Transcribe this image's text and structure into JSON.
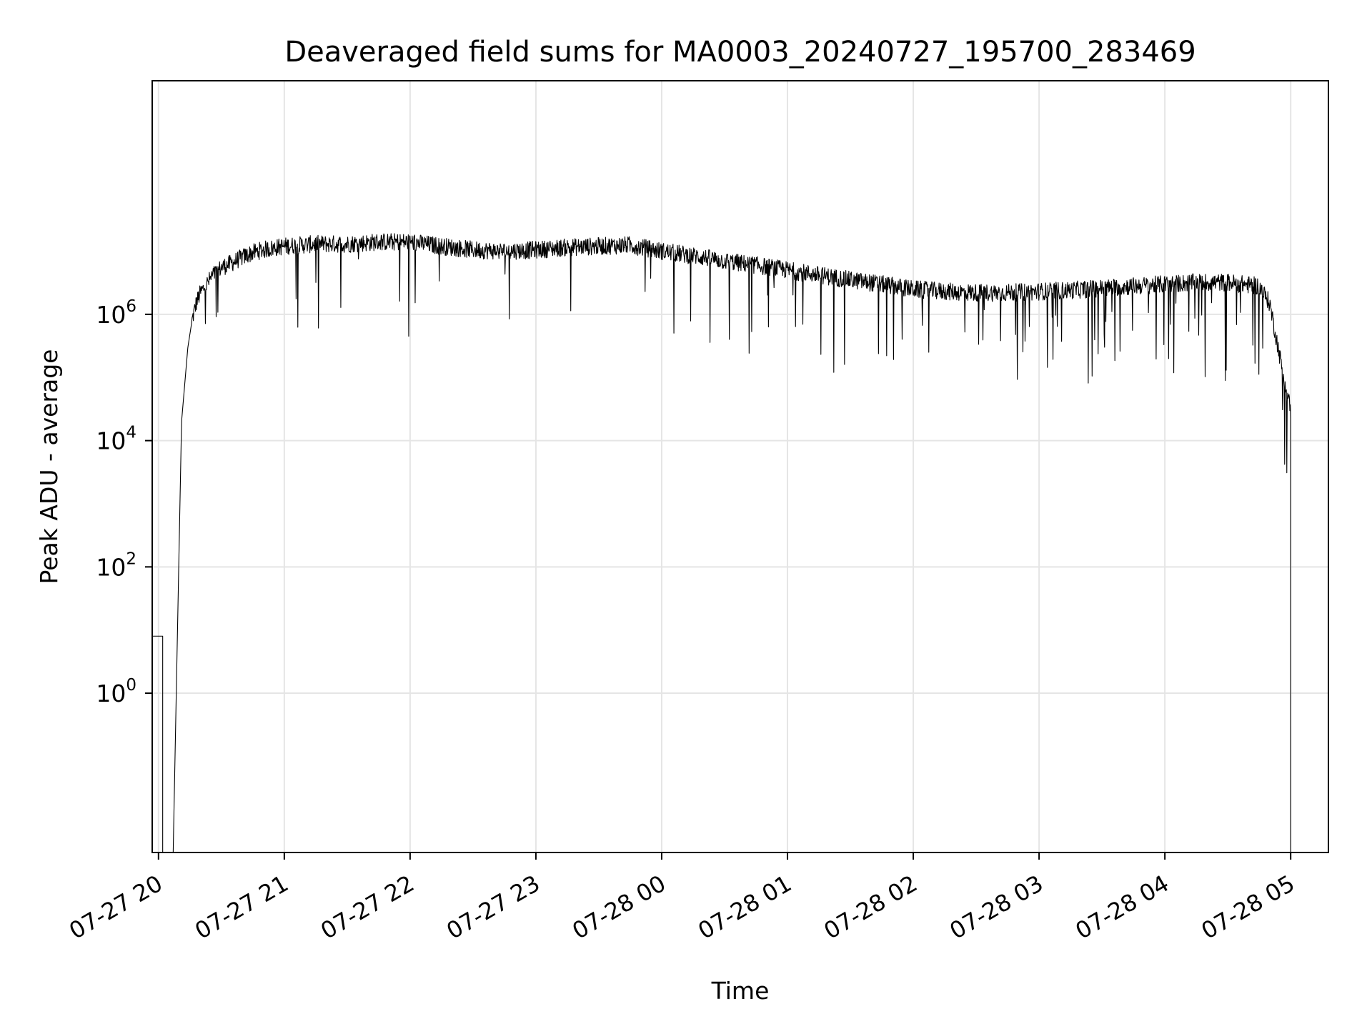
{
  "chart_data": {
    "type": "line",
    "title": "Deaveraged field sums for MA0003_20240727_195700_283469",
    "xlabel": "Time",
    "ylabel": "Peak ADU - average",
    "yscale": "log",
    "ylim": [
      0.003,
      5000000000
    ],
    "xlim": [
      "2024-07-27 19:57",
      "2024-07-28 05:18"
    ],
    "grid": true,
    "line_color": "#000000",
    "grid_color": "#e5e5e5",
    "x_ticks": [
      "07-27 20",
      "07-27 21",
      "07-27 22",
      "07-27 23",
      "07-28 00",
      "07-28 01",
      "07-28 02",
      "07-28 03",
      "07-28 04",
      "07-28 05"
    ],
    "y_ticks": [
      {
        "base": "10",
        "exp": "0"
      },
      {
        "base": "10",
        "exp": "2"
      },
      {
        "base": "10",
        "exp": "4"
      },
      {
        "base": "10",
        "exp": "6"
      }
    ],
    "series": [
      {
        "x": [
          "2024-07-27 19:57",
          "2024-07-27 20:07",
          "2024-07-27 20:11",
          "2024-07-27 20:14",
          "2024-07-27 20:16",
          "2024-07-27 20:18",
          "2024-07-27 20:20",
          "2024-07-27 20:23",
          "2024-07-27 20:26",
          "2024-07-27 20:30",
          "2024-07-27 20:35",
          "2024-07-27 20:40",
          "2024-07-27 20:45",
          "2024-07-27 20:50",
          "2024-07-27 21:00",
          "2024-07-27 21:15",
          "2024-07-27 21:30",
          "2024-07-27 21:45",
          "2024-07-27 22:00",
          "2024-07-27 22:15",
          "2024-07-27 22:30",
          "2024-07-27 22:45",
          "2024-07-27 23:00",
          "2024-07-27 23:15",
          "2024-07-27 23:30",
          "2024-07-27 23:45",
          "2024-07-28 00:00",
          "2024-07-28 00:15",
          "2024-07-28 00:30",
          "2024-07-28 00:45",
          "2024-07-28 01:00",
          "2024-07-28 01:15",
          "2024-07-28 01:30",
          "2024-07-28 01:45",
          "2024-07-28 02:00",
          "2024-07-28 02:15",
          "2024-07-28 02:30",
          "2024-07-28 02:45",
          "2024-07-28 03:00",
          "2024-07-28 03:15",
          "2024-07-28 03:30",
          "2024-07-28 03:45",
          "2024-07-28 04:00",
          "2024-07-28 04:15",
          "2024-07-28 04:30",
          "2024-07-28 04:45",
          "2024-07-28 04:50",
          "2024-07-28 04:55",
          "2024-07-28 05:00"
        ],
        "y": [
          8,
          0.003,
          20000,
          300000,
          800000,
          1500000,
          2200000,
          3000000,
          4200000,
          5500000,
          6500000,
          8000000,
          9500000,
          10500000,
          12000000,
          13000000,
          13000000,
          14000000,
          14000000,
          12000000,
          10500000,
          10000000,
          10500000,
          11500000,
          12000000,
          12500000,
          10000000,
          8500000,
          7000000,
          6000000,
          5000000,
          4200000,
          3500000,
          3000000,
          2500000,
          2300000,
          2200000,
          2200000,
          2300000,
          2400000,
          2600000,
          2800000,
          3000000,
          3200000,
          3200000,
          2800000,
          1500000,
          200000,
          30000
        ]
      }
    ]
  }
}
